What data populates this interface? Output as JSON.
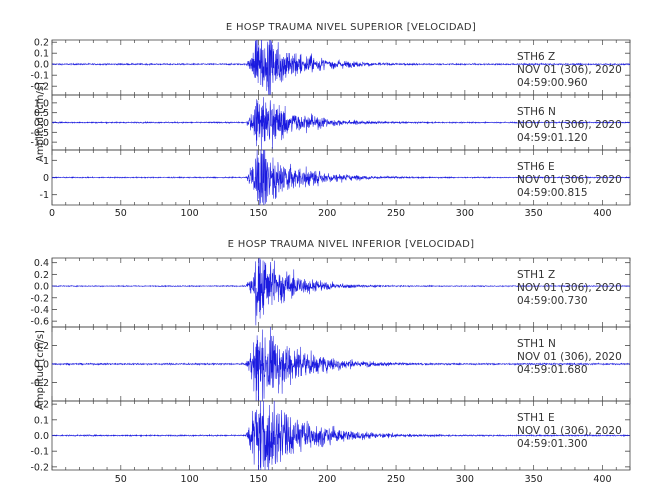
{
  "chart_data": [
    {
      "type": "line",
      "title": "E HOSP TRAUMA NIVEL SUPERIOR [VELOCIDAD]",
      "ylabel": "Amplitud [cm/s]",
      "xlim": [
        0,
        420
      ],
      "x_ticks": [
        "0",
        "50",
        "100",
        "150",
        "200",
        "250",
        "300",
        "350",
        "400"
      ],
      "traces": [
        {
          "station": "STH6",
          "component": "Z",
          "date": "NOV 01 (306), 2020",
          "time": "04:59:00.960",
          "ylim": [
            -0.28,
            0.22
          ],
          "y_ticks": [
            "0.2",
            "0.1",
            "0.0",
            "-0.1",
            "-0.2"
          ],
          "onset_s": 140,
          "peak_s": 150,
          "peak_amp": 0.2,
          "decay_s": 28,
          "noise": 0.003
        },
        {
          "station": "STH6",
          "component": "N",
          "date": "NOV 01 (306), 2020",
          "time": "04:59:01.120",
          "ylim": [
            -1.4,
            1.4
          ],
          "y_ticks": [
            "1.0",
            "0.5",
            "0.0",
            "-0.5",
            "-1.0"
          ],
          "onset_s": 140,
          "peak_s": 150,
          "peak_amp": 1.0,
          "decay_s": 26,
          "noise": 0.015
        },
        {
          "station": "STH6",
          "component": "E",
          "date": "NOV 01 (306), 2020",
          "time": "04:59:00.815",
          "ylim": [
            -1.6,
            1.6
          ],
          "y_ticks": [
            "1",
            "0",
            "-1"
          ],
          "onset_s": 140,
          "peak_s": 150,
          "peak_amp": 1.4,
          "decay_s": 26,
          "noise": 0.015
        }
      ]
    },
    {
      "type": "line",
      "title": "E HOSP TRAUMA NIVEL INFERIOR [VELOCIDAD]",
      "ylabel": "Amplitud [cm/s]",
      "xlim": [
        0,
        420
      ],
      "x_ticks": [
        "50",
        "100",
        "150",
        "200",
        "250",
        "300",
        "350",
        "400"
      ],
      "traces": [
        {
          "station": "STH1",
          "component": "Z",
          "date": "NOV 01 (306), 2020",
          "time": "04:59:00.730",
          "ylim": [
            -0.7,
            0.48
          ],
          "y_ticks": [
            "0.4",
            "0.2",
            "0.0",
            "-0.2",
            "-0.4",
            "-0.6"
          ],
          "onset_s": 140,
          "peak_s": 150,
          "peak_amp": 0.45,
          "decay_s": 22,
          "noise": 0.004
        },
        {
          "station": "STH1",
          "component": "N",
          "date": "NOV 01 (306), 2020",
          "time": "04:59:01.680",
          "ylim": [
            -0.4,
            0.4
          ],
          "y_ticks": [
            "0.2",
            "0.0",
            "-0.2"
          ],
          "onset_s": 140,
          "peak_s": 150,
          "peak_amp": 0.32,
          "decay_s": 28,
          "noise": 0.004
        },
        {
          "station": "STH1",
          "component": "E",
          "date": "NOV 01 (306), 2020",
          "time": "04:59:01.300",
          "ylim": [
            -0.22,
            0.22
          ],
          "y_ticks": [
            "0.2",
            "0.1",
            "0.0",
            "-0.1",
            "-0.2"
          ],
          "onset_s": 140,
          "peak_s": 150,
          "peak_amp": 0.2,
          "decay_s": 30,
          "noise": 0.002
        }
      ]
    }
  ],
  "colors": {
    "trace": "#1a1adf",
    "frame": "#444444",
    "text": "#333333"
  }
}
